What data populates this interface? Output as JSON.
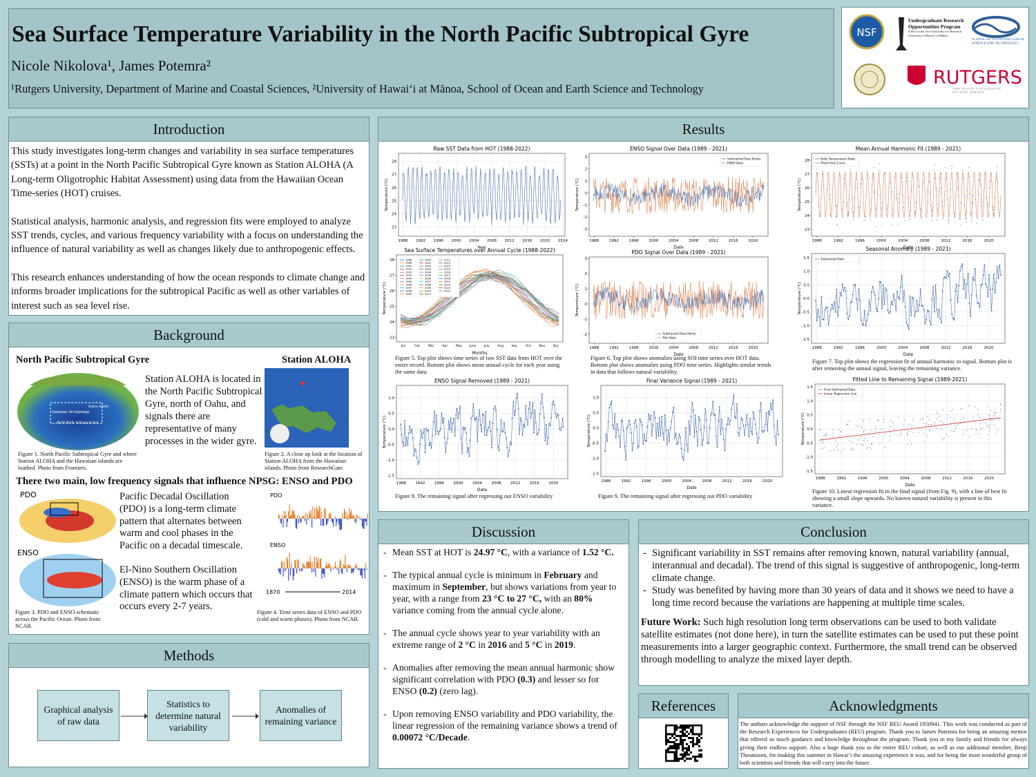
{
  "header": {
    "title": "Sea Surface Temperature Variability in the North Pacific Subtropical Gyre",
    "authors": "Nicole Nikolova¹, James Potemra²",
    "affiliations": "¹Rutgers University, Department of Marine and Coastal Sciences, ²University of Hawaiʻi at Mānoa, School of Ocean and Earth Science and Technology",
    "logos": {
      "nsf": "NSF",
      "urop": "Undergraduate Research Opportunities Program",
      "urop_sub": "Office of the Vice Chancellor for Research University of Hawaiʻi at Mānoa",
      "soest": "SCHOOL OF OCEAN AND EARTH SCIENCE AND TECHNOLOGY",
      "rutgers": "RUTGERS",
      "rutgers_sub": "THE STATE UNIVERSITY OF NEW JERSEY"
    }
  },
  "introduction": {
    "heading": "Introduction",
    "paragraphs": [
      "This study investigates long-term changes and variability in sea surface temperatures (SSTs) at a point in the North Pacific Subtropical Gyre known as Station ALOHA (A Long-term Oligotrophic Habitat Assessment) using data from the Hawaiian Ocean Time-series (HOT) cruises.",
      "Statistical analysis, harmonic analysis, and regression fits were employed to analyze SST trends, cycles, and various frequency variability with a focus on understanding the influence of natural variability as well as changes likely due to anthropogenic effects.",
      "This research enhances understanding of how the ocean responds to climate change and informs broader implications for the subtropical Pacific as well as other variables of interest such as sea level rise."
    ]
  },
  "background": {
    "heading": "Background",
    "gyre_heading": "North Pacific Subtropical Gyre",
    "aloha_heading": "Station ALOHA",
    "map_labels": [
      "Hawaiian Archipelago",
      "Station ALOHA",
      "North Pacific Subtropical Gyre"
    ],
    "aloha_text": "Station ALOHA is located in the North Pacific Subtropical Gyre, north of Oahu, and signals there are representative of many processes in the wider gyre.",
    "fig1": "Figure 1. North Pacific Subtropical Gyre and where Station ALOHA and the Hawaiian islands are loathed. Photo from Frontiers.",
    "fig2": "Figure 2. A close up look at the location of Station ALOHA from the Hawaiian islands. Photo from ResearchGate.",
    "signals_heading": "There two main, low frequency signals that influence NPSG: ENSO and PDO",
    "pdo_label": "PDO",
    "enso_label": "ENSO",
    "pdo_text": "Pacific Decadal Oscillation (PDO) is a long-term climate pattern that alternates between warm and cool phases in the Pacific on a decadal timescale.",
    "enso_text": "El-Nino Southern Oscillation (ENSO) is the warm phase of a climate pattern which occurs that occurs every 2-7 years.",
    "fig4_start": "1870",
    "fig4_end": "2014",
    "fig3": "Figure 3. PDO and ENSO schematic across the Pacific Ocean. Photo from NCAR.",
    "fig4": "Figure 4. Time series data of ENSO and PDO (cold and warm phases). Photo from NCAR."
  },
  "methods": {
    "heading": "Methods",
    "steps": [
      "Graphical analysis of raw data",
      "Statistics to determine natural variability",
      "Anomalies of remaining variance"
    ]
  },
  "results": {
    "heading": "Results",
    "captions": [
      "Figure 5. Top plot shows time series of raw SST data from HOT over the entire record. Bottom plot shows mean annual cycle for each year using the same data.",
      "Figure 6. Top plot shows anomalies using SOI time series over HOT data. Bottom plot shows anomalies using PDO time series. Highlights similar trends in data that follows natural variability.",
      "Figure 7. Top plot shows the regression fit of annual harmonic to signal. Bottom plot is after removing the annual signal, leaving the remaining variance.",
      "Figure 8. The remaining signal after regressing out ENSO variability",
      "Figure 9. The remaining signal after regressing out PDO variability",
      "Figure 10. Linear regression fit in the final signal (from Fig. 9), with a line of best fit showing a small slope upwards. No known natural variability is present in this variance."
    ],
    "plots": [
      {
        "type": "line",
        "title": "Raw SST Data from HOT (1988-2022)",
        "xlabel": "Year",
        "ylabel": "Temperature (°C)",
        "xlim": [
          1987,
          2024.5
        ],
        "xticks": [
          1988,
          1992,
          1996,
          2000,
          2004,
          2008,
          2012,
          2016,
          2020,
          2024
        ],
        "ylim": [
          22.3,
          28.6
        ],
        "yticks": [
          23,
          24,
          25,
          26,
          27,
          28
        ],
        "colors": [
          "#4c72b0"
        ],
        "grid": true
      },
      {
        "type": "dual",
        "title": "ENSO Signal Over Data (1989 - 2021)",
        "xlabel": "Date",
        "ylabel": "Temperature (°C)",
        "xlim": [
          1987,
          2023
        ],
        "xticks": [
          1988,
          1992,
          1996,
          2000,
          2004,
          2008,
          2012,
          2016,
          2020
        ],
        "ylim": [
          -3.6,
          3.3
        ],
        "yticks": [
          -3,
          -2,
          -1,
          0,
          1,
          2,
          3
        ],
        "legend": [
          "Subtracted Data Points",
          "ENSO Data"
        ],
        "legend_loc": "upper right",
        "colors": [
          "#4c72b0",
          "#dd8452"
        ],
        "grid": false
      },
      {
        "type": "harmonic",
        "title": "Mean Annual Harmonic Fit (1989 - 2021)",
        "xlabel": "Date",
        "ylabel": "Temperature (°C)",
        "xlim": [
          1987,
          2023
        ],
        "xticks": [
          1988,
          1992,
          1996,
          2000,
          2004,
          2008,
          2012,
          2016,
          2020
        ],
        "ylim": [
          22.5,
          28.5
        ],
        "yticks": [
          23,
          24,
          25,
          26,
          27,
          28
        ],
        "legend": [
          "Daily Temperature Data",
          "Fitted Sine Curve"
        ],
        "legend_loc": "upper left",
        "colors": [
          "#4c72b0",
          "#dd8452"
        ],
        "grid": false
      },
      {
        "type": "cycle",
        "title": "Sea Surface Temperatures over Annual Cycle (1988-2022)",
        "xlabel": "Months",
        "ylabel": "Temperature (°C)",
        "categories": [
          "Jan",
          "Feb",
          "Mar",
          "Apr",
          "May",
          "June",
          "July",
          "Aug",
          "Sep",
          "Oct",
          "Nov",
          "Dec"
        ],
        "ylim": [
          22.7,
          28.3
        ],
        "yticks": [
          23,
          24,
          25,
          26,
          27,
          28
        ],
        "legend": [
          "1988",
          "1989",
          "1990",
          "1991",
          "1992",
          "1993",
          "1994",
          "1995",
          "1996",
          "1997",
          "1998",
          "1999",
          "2000",
          "2001",
          "2002",
          "2003",
          "2004",
          "2005",
          "2006",
          "2007",
          "2008",
          "2009",
          "2010",
          "2011",
          "2012",
          "2013",
          "2014",
          "2015",
          "2016",
          "2017",
          "2018",
          "2019",
          "2020",
          "2021",
          "2022"
        ],
        "legend_loc": "upper left",
        "colors": [
          "#1f77b4",
          "#ff7f0e",
          "#2ca02c",
          "#d62728",
          "#9467bd",
          "#8c564b",
          "#e377c2",
          "#7f7f7f",
          "#bcbd22",
          "#17becf"
        ],
        "grid": false
      },
      {
        "type": "dual",
        "title": "PDO Signal Over Data (1989 - 2021)",
        "xlabel": "Date",
        "ylabel": "Temperature (°C)",
        "xlim": [
          1987,
          2023
        ],
        "xticks": [
          1988,
          1992,
          1996,
          2000,
          2004,
          2008,
          2012,
          2016,
          2020
        ],
        "ylim": [
          -2.6,
          3.1
        ],
        "yticks": [
          -2,
          -1,
          0,
          1,
          2,
          3
        ],
        "legend": [
          "Subtracted Data Points",
          "Pdo Data"
        ],
        "legend_loc": "lower center",
        "colors": [
          "#4c72b0",
          "#dd8452"
        ],
        "grid": false
      },
      {
        "type": "markers",
        "title": "Seasonal Anomaly (1989 - 2021)",
        "xlabel": "Date",
        "ylabel": "Temperature (°C)",
        "xlim": [
          1987,
          2023
        ],
        "xticks": [
          1988,
          1992,
          1996,
          2000,
          2004,
          2008,
          2012,
          2016,
          2020
        ],
        "ylim": [
          -1.65,
          1.65
        ],
        "yticks": [
          -1.5,
          {
            "value": -1,
            "label": "-1.0"
          },
          -0.5,
          {
            "value": 0,
            "label": "0.0"
          },
          0.5,
          {
            "value": 1,
            "label": "1.0"
          },
          1.5
        ],
        "legend": [
          "Subtracted Data"
        ],
        "legend_loc": "upper left",
        "colors": [
          "#4c72b0"
        ],
        "grid": true
      },
      {
        "type": "markers",
        "title": "ENSO Signal Removed (1989 - 2021)",
        "xlabel": "Date",
        "ylabel": "Temperature (°C)",
        "xlim": [
          1987,
          2023
        ],
        "xticks": [
          1988,
          1992,
          1996,
          2000,
          2004,
          2008,
          2012,
          2016,
          2020
        ],
        "ylim": [
          -1.6,
          1.4
        ],
        "yticks": [
          -1.5,
          {
            "value": -1,
            "label": "-1.0"
          },
          -0.5,
          {
            "value": 0,
            "label": "0.0"
          },
          0.5,
          {
            "value": 1,
            "label": "1.0"
          }
        ],
        "colors": [
          "#4c72b0"
        ],
        "grid": true
      },
      {
        "type": "markers",
        "title": "Final Variance Signal (1989 - 2021)",
        "xlabel": "Date",
        "ylabel": "Temperature (°C)",
        "xlim": [
          1987,
          2023
        ],
        "xticks": [
          1988,
          1992,
          1996,
          2000,
          2004,
          2008,
          2012,
          2016,
          2020
        ],
        "ylim": [
          -1.6,
          1.4
        ],
        "yticks": [
          -1.5,
          {
            "value": -1,
            "label": "-1.0"
          },
          -0.5,
          {
            "value": 0,
            "label": "0.0"
          },
          0.5,
          {
            "value": 1,
            "label": "1.0"
          }
        ],
        "colors": [
          "#4c72b0"
        ],
        "grid": true
      },
      {
        "type": "scatter",
        "title": "Fitted Line to Remaining Signal (1989-2021)",
        "xlabel": "Date",
        "ylabel": "Temperature (°C)",
        "xlim": [
          1987,
          2023
        ],
        "xticks": [
          1988,
          1992,
          1996,
          2000,
          2004,
          2008,
          2012,
          2016,
          2020
        ],
        "ylim": [
          -1.6,
          1.6
        ],
        "yticks": [
          -1.5,
          {
            "value": -1,
            "label": "-1.0"
          },
          -0.5,
          {
            "value": 0,
            "label": "0.0"
          },
          0.5,
          {
            "value": 1,
            "label": "1.0"
          },
          1.5
        ],
        "legend": [
          "Final Subtracted Data",
          "Linear Regression Line"
        ],
        "legend_loc": "upper left",
        "colors": [
          "#4c72b0",
          "#d62728"
        ],
        "grid": true
      }
    ]
  },
  "discussion": {
    "heading": "Discussion",
    "bullets": [
      [
        "Mean SST at HOT is ",
        "24.97 °C",
        ", with a variance of ",
        "1.52 °C."
      ],
      [
        "The typical annual cycle is minimum in ",
        "February",
        " and maximum in ",
        "September",
        ", but shows variations from year to year, with a range from ",
        "23 °C to 27 °C,",
        " with an ",
        "80%",
        " variance coming from the annual cycle alone."
      ],
      [
        "The annual cycle shows year to year variability with an extreme range of ",
        "2 °C",
        " in ",
        "2016",
        " and ",
        "5 °C",
        " in ",
        "2019",
        "."
      ],
      [
        "Anomalies after removing the mean annual harmonic show significant correlation with PDO ",
        "(0.3)",
        " and lesser so for ENSO ",
        "(0.2)",
        " (zero lag)."
      ],
      [
        "Upon removing ENSO variability and PDO variability, the linear regression of the remaining variance shows a trend of ",
        "0.00072 °C/Decade",
        "."
      ]
    ]
  },
  "conclusion": {
    "heading": "Conclusion",
    "bullets": [
      "Significant variability in SST remains after removing known, natural variability (annual, interannual and decadal). The trend of this signal is suggestive of anthropogenic, long-term climate change.",
      "Study was benefited by having more than 30 years of data and it shows we need to have a long time record because the variations are happening at multiple time scales."
    ],
    "future_label": "Future Work:",
    "future_text": " Such high resolution long term observations can be used to both validate satellite estimates (not done here), in turn the satellite estimates can be used to put these point measurements into a larger geographic context. Furthermore, the small trend can be observed through modelling to analyze the mixed layer depth."
  },
  "references": {
    "heading": "References"
  },
  "acknowledgments": {
    "heading": "Acknowledgments",
    "text": "The authors acknowledge the support of NSF through the NSF REU Award 1950941. This work was conducted as part of the Research Experiences for Undergraduates (REU) program. Thank you to James Potemra for being an amazing mentor that offered so much guidance and knowledge throughout the program. Thank you to my family and friends for always giving their endless support. Also a huge thank you to the entire REU cohort, as well as our additional member, Benji Theunissen, for making this summer in Hawaiʻi the amazing experience it was, and for being the most wonderful group of both scientists and friends that will carry into the future."
  }
}
